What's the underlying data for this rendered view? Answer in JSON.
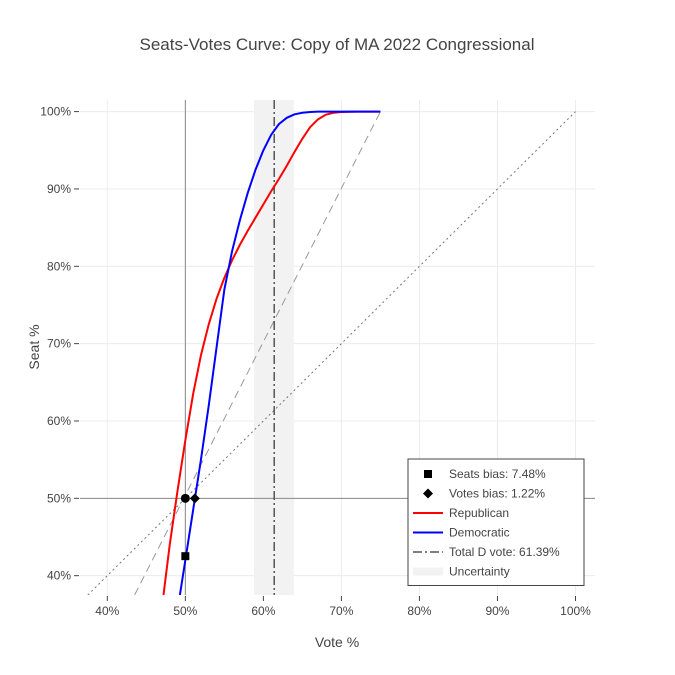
{
  "chart_data": {
    "type": "line",
    "title": "Seats-Votes Curve: Copy of MA 2022 Congressional",
    "xlabel": "Vote %",
    "ylabel": "Seat %",
    "xlim": [
      36.5,
      102.5
    ],
    "ylim": [
      37.5,
      101.5
    ],
    "x_ticks": [
      {
        "value": 40,
        "label": "40%"
      },
      {
        "value": 50,
        "label": "50%"
      },
      {
        "value": 60,
        "label": "60%"
      },
      {
        "value": 70,
        "label": "70%"
      },
      {
        "value": 80,
        "label": "80%"
      },
      {
        "value": 90,
        "label": "90%"
      },
      {
        "value": 100,
        "label": "100%"
      }
    ],
    "y_ticks": [
      {
        "value": 40,
        "label": "40%"
      },
      {
        "value": 50,
        "label": "50%"
      },
      {
        "value": 60,
        "label": "60%"
      },
      {
        "value": 70,
        "label": "70%"
      },
      {
        "value": 80,
        "label": "80%"
      },
      {
        "value": 90,
        "label": "90%"
      },
      {
        "value": 100,
        "label": "100%"
      }
    ],
    "grid": true,
    "legend_position": "bottom-right",
    "uncertainty_band": {
      "x0": 58.8,
      "x1": 63.9,
      "color": "#f2f2f2"
    },
    "total_d_vote": {
      "x": 61.39,
      "color": "#555555"
    },
    "reference_lines": [
      {
        "name": "proportionality",
        "points": [
          [
            37.5,
            37.5
          ],
          [
            100,
            100
          ]
        ],
        "color": "#777777"
      },
      {
        "name": "responsiveness",
        "points": [
          [
            43.5,
            37.5
          ],
          [
            75,
            100
          ]
        ],
        "color": "#999999"
      }
    ],
    "crosshair": {
      "x": 50,
      "y": 50,
      "color": "#888888"
    },
    "series": [
      {
        "name": "Republican",
        "color": "#ff0000",
        "x": [
          47.2,
          48.0,
          49.0,
          50.0,
          51.0,
          52.0,
          53.0,
          54.0,
          55.0,
          56.0,
          57.0,
          58.0,
          59.0,
          60.0,
          61.0,
          62.0,
          63.0,
          64.0,
          65.0,
          66.0,
          67.0,
          68.0,
          69.0,
          70.0,
          72.0,
          75.0
        ],
        "y": [
          37.5,
          44.0,
          51.0,
          57.5,
          63.5,
          68.5,
          72.5,
          75.8,
          78.5,
          80.8,
          82.8,
          84.6,
          86.3,
          88.0,
          89.7,
          91.3,
          93.0,
          94.8,
          96.5,
          98.0,
          99.0,
          99.6,
          99.85,
          99.95,
          100,
          100
        ]
      },
      {
        "name": "Democratic",
        "color": "#0000ff",
        "x": [
          49.3,
          50.0,
          51.0,
          52.0,
          53.0,
          54.0,
          55.0,
          56.0,
          57.0,
          58.0,
          59.0,
          60.0,
          61.0,
          62.0,
          63.0,
          64.0,
          65.0,
          66.0,
          67.0,
          68.0,
          70.0,
          75.0
        ],
        "y": [
          37.5,
          42.0,
          48.5,
          55.0,
          62.0,
          69.5,
          77.0,
          82.0,
          86.0,
          89.5,
          92.5,
          95.0,
          97.0,
          98.4,
          99.2,
          99.65,
          99.85,
          99.95,
          100,
          100,
          100,
          100
        ]
      }
    ],
    "markers": [
      {
        "name": "seats-bias-marker",
        "shape": "square",
        "x": 50.0,
        "y": 42.52
      },
      {
        "name": "votes-bias-marker",
        "shape": "diamond",
        "x": 51.22,
        "y": 50.0
      },
      {
        "name": "midpoint-marker",
        "shape": "circle",
        "x": 50.0,
        "y": 50.0
      }
    ],
    "legend": [
      {
        "key": "seats_bias",
        "symbol": "square",
        "label": "Seats bias: 7.48%"
      },
      {
        "key": "votes_bias",
        "symbol": "diamond",
        "label": "Votes bias: 1.22%"
      },
      {
        "key": "republican",
        "symbol": "line",
        "color": "#ff0000",
        "label": "Republican"
      },
      {
        "key": "democratic",
        "symbol": "line",
        "color": "#0000ff",
        "label": "Democratic"
      },
      {
        "key": "total_d_vote",
        "symbol": "dashdot",
        "color": "#555555",
        "label": "Total D vote: 61.39%"
      },
      {
        "key": "uncertainty",
        "symbol": "band",
        "color": "#f2f2f2",
        "label": "Uncertainty"
      }
    ]
  }
}
